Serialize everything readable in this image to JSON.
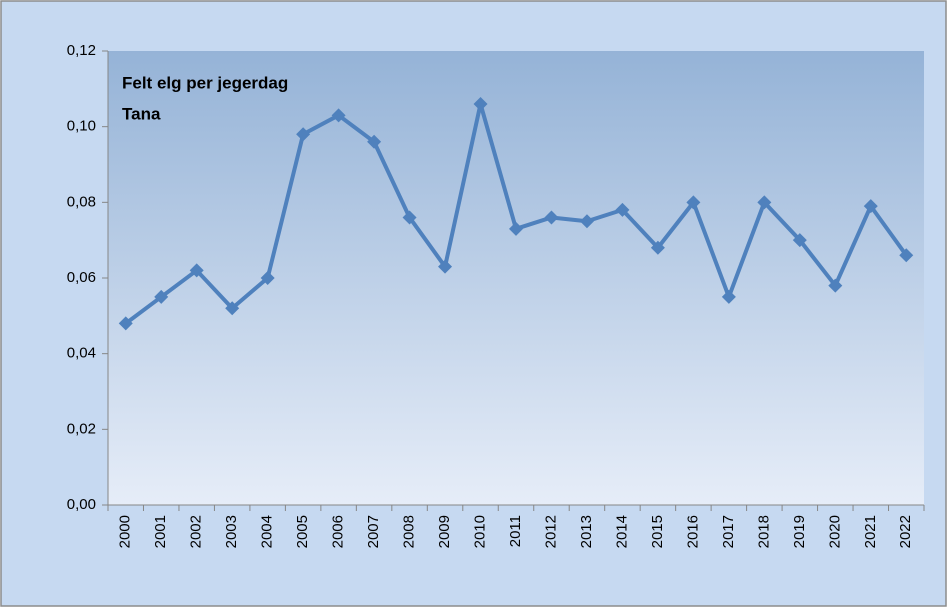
{
  "chart_data": {
    "type": "line",
    "title": "Felt elg per jegerdag",
    "subtitle": "Tana",
    "categories": [
      "2000",
      "2001",
      "2002",
      "2003",
      "2004",
      "2005",
      "2006",
      "2007",
      "2008",
      "2009",
      "2010",
      "2011",
      "2012",
      "2013",
      "2014",
      "2015",
      "2016",
      "2017",
      "2018",
      "2019",
      "2020",
      "2021",
      "2022"
    ],
    "series": [
      {
        "name": "Felt elg per jegerdag",
        "color": "#4f81bd",
        "values": [
          0.048,
          0.055,
          0.062,
          0.052,
          0.06,
          0.098,
          0.103,
          0.096,
          0.076,
          0.063,
          0.106,
          0.073,
          0.076,
          0.075,
          0.078,
          0.068,
          0.08,
          0.055,
          0.08,
          0.07,
          0.058,
          0.079,
          0.066
        ]
      }
    ],
    "ylim": [
      0,
      0.12
    ],
    "yticks": [
      {
        "value": 0,
        "label": "0,00"
      },
      {
        "value": 0.02,
        "label": "0,02"
      },
      {
        "value": 0.04,
        "label": "0,04"
      },
      {
        "value": 0.06,
        "label": "0,06"
      },
      {
        "value": 0.08,
        "label": "0,08"
      },
      {
        "value": 0.1,
        "label": "0,10"
      },
      {
        "value": 0.12,
        "label": "0,12"
      }
    ]
  }
}
